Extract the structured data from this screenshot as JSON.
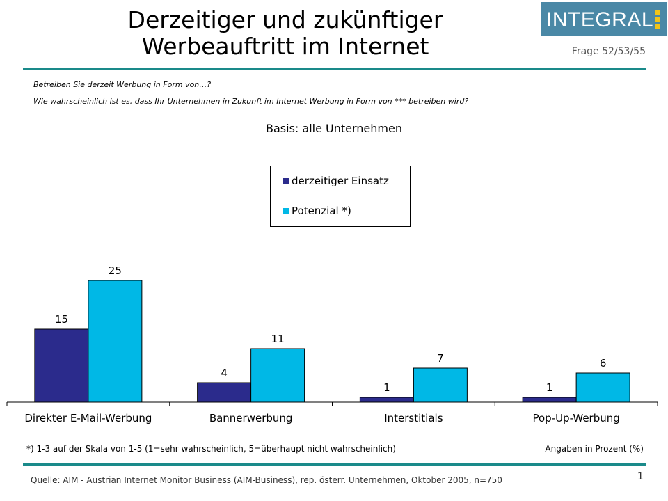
{
  "header": {
    "title_line1": "Derzeitiger und zukünftiger",
    "title_line2": "Werbeauftritt im Internet",
    "frage": "Frage 52/53/55",
    "logo_text": "INTEGRAL"
  },
  "questions": {
    "q1": "Betreiben Sie derzeit Werbung in Form von…?",
    "q2": "Wie wahrscheinlich ist es, dass Ihr Unternehmen in Zukunft im Internet Werbung in Form von *** betreiben wird?"
  },
  "basis": "Basis: alle Unternehmen",
  "chart_data": {
    "type": "bar",
    "categories": [
      "Direkter E-Mail-Werbung",
      "Bannerwerbung",
      "Interstitials",
      "Pop-Up-Werbung"
    ],
    "series": [
      {
        "name": "derzeitiger Einsatz",
        "values": [
          15,
          4,
          1,
          1
        ],
        "color": "#2b2b8c"
      },
      {
        "name": "Potenzial *)",
        "values": [
          25,
          11,
          7,
          6
        ],
        "color": "#00b8e6"
      }
    ],
    "ylim": [
      0,
      25
    ],
    "grid": false,
    "legend_position": "top-center"
  },
  "footnotes": {
    "scale_note": "*) 1-3 auf der Skala von 1-5 (1=sehr wahrscheinlich, 5=überhaupt nicht wahrscheinlich)",
    "units_note": "Angaben in Prozent (%)",
    "source": "Quelle: AIM - Austrian Internet Monitor Business (AIM-Business), rep. österr. Unternehmen, Oktober 2005, n=750",
    "page_number": "1"
  }
}
